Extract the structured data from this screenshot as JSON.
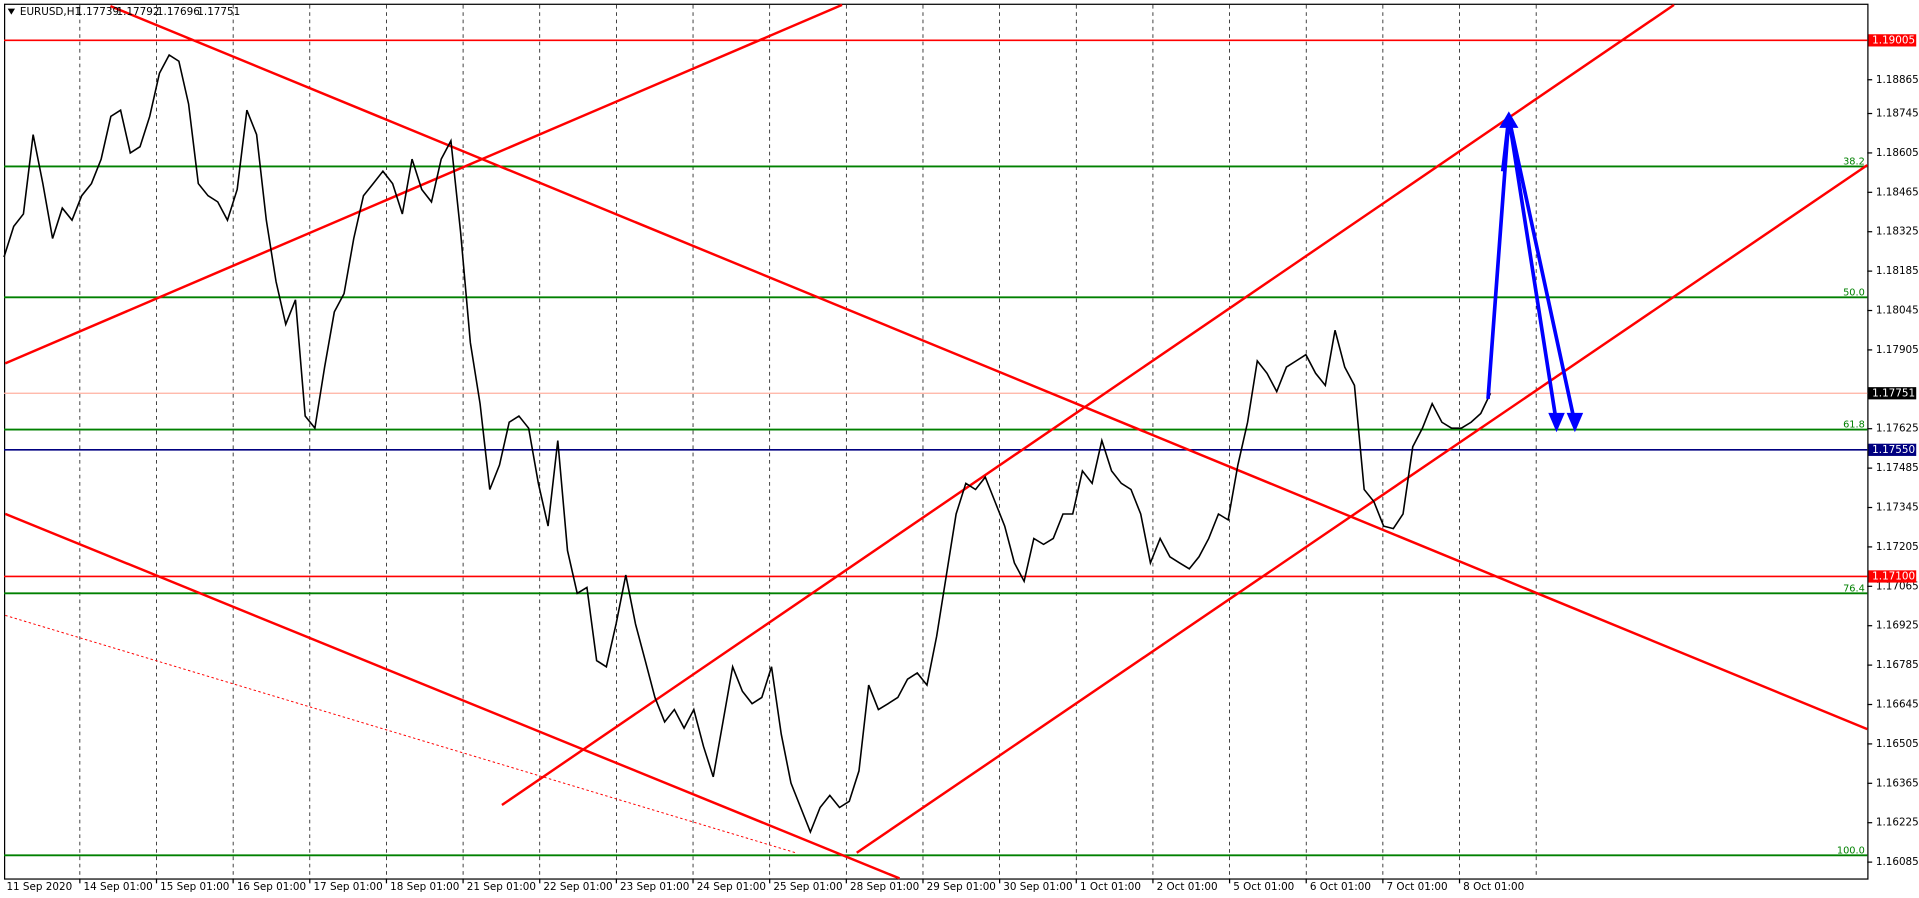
{
  "chart_data": {
    "type": "line",
    "title": "EURUSD,H1",
    "ohlc": [
      1.17739,
      1.17792,
      1.17696,
      1.17751
    ],
    "x_labels": [
      "11 Sep 2020",
      "14 Sep 01:00",
      "15 Sep 01:00",
      "16 Sep 01:00",
      "17 Sep 01:00",
      "18 Sep 01:00",
      "21 Sep 01:00",
      "22 Sep 01:00",
      "23 Sep 01:00",
      "24 Sep 01:00",
      "25 Sep 01:00",
      "28 Sep 01:00",
      "29 Sep 01:00",
      "30 Sep 01:00",
      "1 Oct 01:00",
      "2 Oct 01:00",
      "5 Oct 01:00",
      "6 Oct 01:00",
      "7 Oct 01:00",
      "8 Oct 01:00"
    ],
    "series": [
      {
        "color": "#000000",
        "values": [
          1.18235,
          1.18344,
          1.18388,
          1.1867,
          1.18496,
          1.18301,
          1.18409,
          1.18366,
          1.18453,
          1.18496,
          1.18583,
          1.18735,
          1.18757,
          1.18605,
          1.18627,
          1.18735,
          1.18888,
          1.18953,
          1.18931,
          1.18779,
          1.18496,
          1.18453,
          1.18431,
          1.18366,
          1.18475,
          1.18757,
          1.1867,
          1.18366,
          1.18148,
          1.17996,
          1.18083,
          1.1767,
          1.17627,
          1.17844,
          1.1804,
          1.18105,
          1.18301,
          1.18453,
          1.18496,
          1.1854,
          1.18496,
          1.18388,
          1.18583,
          1.18475,
          1.18431,
          1.18583,
          1.18648,
          1.18322,
          1.17931,
          1.17714,
          1.17409,
          1.17496,
          1.17648,
          1.1767,
          1.17627,
          1.17431,
          1.17279,
          1.17583,
          1.17192,
          1.1704,
          1.17061,
          1.16801,
          1.16779,
          1.16931,
          1.17105,
          1.16931,
          1.16801,
          1.1667,
          1.16583,
          1.16627,
          1.16561,
          1.16627,
          1.16496,
          1.16388,
          1.16583,
          1.16779,
          1.16692,
          1.16648,
          1.1667,
          1.16779,
          1.1654,
          1.16366,
          1.16279,
          1.16192,
          1.16279,
          1.16322,
          1.16279,
          1.16301,
          1.16409,
          1.16714,
          1.16627,
          1.16648,
          1.1667,
          1.16735,
          1.16757,
          1.16714,
          1.16888,
          1.17105,
          1.17322,
          1.17431,
          1.17409,
          1.17453,
          1.17366,
          1.17279,
          1.17148,
          1.17083,
          1.17235,
          1.17214,
          1.17235,
          1.17322,
          1.17322,
          1.17475,
          1.17431,
          1.17583,
          1.17475,
          1.17431,
          1.17409,
          1.17322,
          1.17148,
          1.17235,
          1.1717,
          1.17148,
          1.17127,
          1.1717,
          1.17235,
          1.17322,
          1.17301,
          1.17496,
          1.17648,
          1.17866,
          1.17822,
          1.17757,
          1.17844,
          1.17866,
          1.17888,
          1.17822,
          1.17779,
          1.17975,
          1.17844,
          1.17779,
          1.17409,
          1.17366,
          1.17279,
          1.1727,
          1.17322,
          1.17561,
          1.17627,
          1.17714,
          1.17648,
          1.17627,
          1.17627,
          1.17648,
          1.17679,
          1.17751
        ]
      }
    ],
    "ylim": [
      1.16027,
      1.19131
    ],
    "yticks": [
      1.18865,
      1.18745,
      1.18605,
      1.18465,
      1.18325,
      1.18185,
      1.18045,
      1.17905,
      1.17625,
      1.17485,
      1.17345,
      1.17205,
      1.17065,
      1.16925,
      1.16785,
      1.16645,
      1.16505,
      1.16365,
      1.16225,
      1.16085
    ],
    "levels": [
      {
        "value": 1.19005,
        "label": "1.19005",
        "color": "#ff0000"
      },
      {
        "value": 1.1755,
        "label": "1.17550",
        "color": "#000080"
      },
      {
        "value": 1.171,
        "label": "1.17100",
        "color": "#ff0000"
      }
    ],
    "current_price": {
      "value": 1.17751,
      "label": "1.17751",
      "color": "#000000"
    },
    "fib_levels": [
      {
        "label": "38.2",
        "price": 1.18557
      },
      {
        "label": "50.0",
        "price": 1.18092
      },
      {
        "label": "61.8",
        "price": 1.17622
      },
      {
        "label": "76.4",
        "price": 1.1704
      },
      {
        "label": "100.0",
        "price": 1.16109
      }
    ],
    "fib_color": "#008000"
  }
}
